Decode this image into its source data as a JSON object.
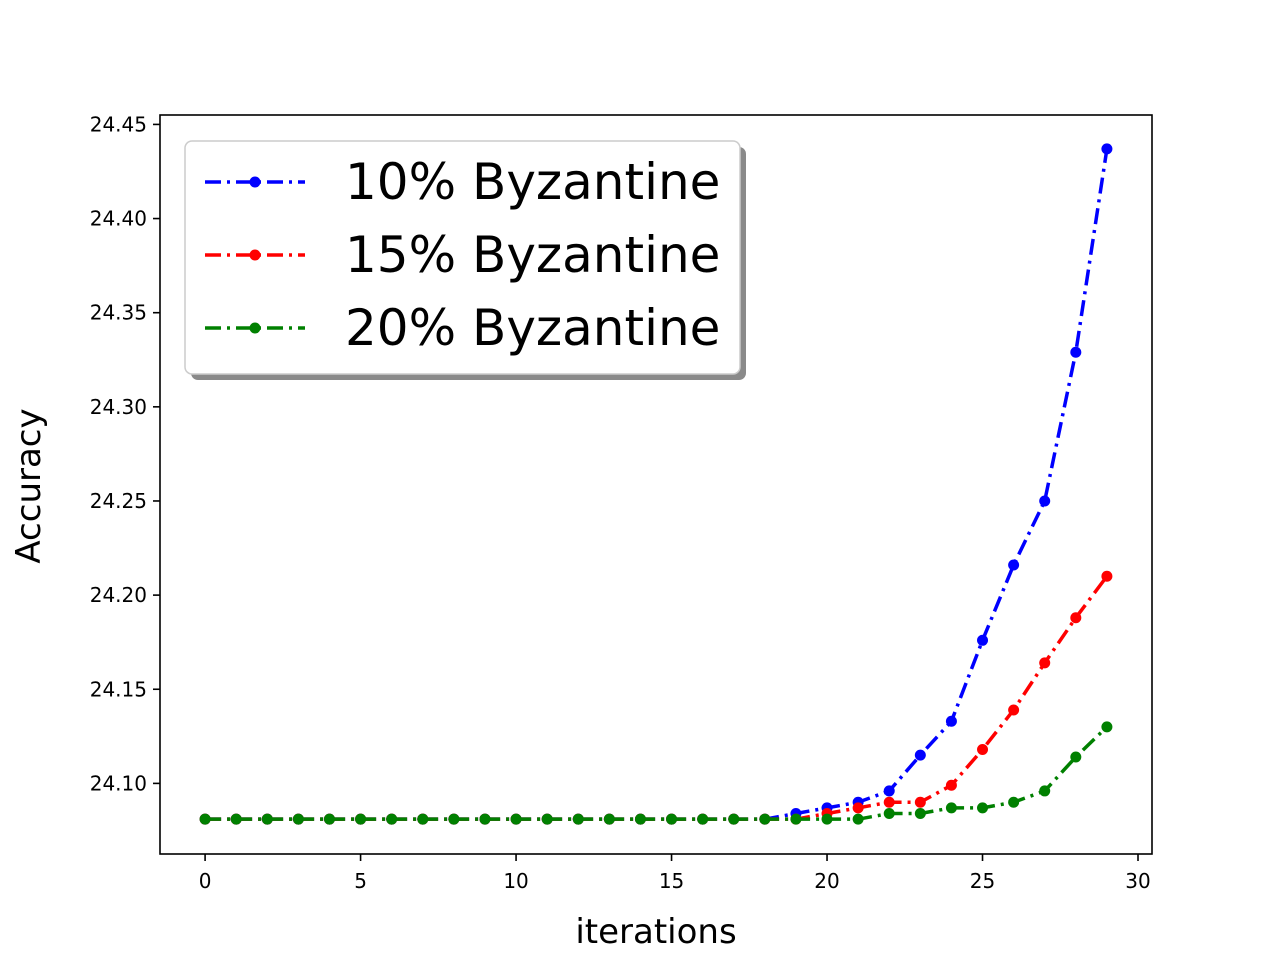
{
  "chart_data": {
    "type": "line",
    "title": "",
    "xlabel": "iterations",
    "ylabel": "Accuracy",
    "xlim": [
      -1.45,
      30.45
    ],
    "ylim": [
      24.0625,
      24.455
    ],
    "xticks": [
      0,
      5,
      10,
      15,
      20,
      25,
      30
    ],
    "yticks": [
      24.1,
      24.15,
      24.2,
      24.25,
      24.3,
      24.35,
      24.4,
      24.45
    ],
    "ytick_labels": [
      "24.10",
      "24.15",
      "24.20",
      "24.25",
      "24.30",
      "24.35",
      "24.40",
      "24.45"
    ],
    "grid": false,
    "legend_position": "upper-left",
    "x": [
      0,
      1,
      2,
      3,
      4,
      5,
      6,
      7,
      8,
      9,
      10,
      11,
      12,
      13,
      14,
      15,
      16,
      17,
      18,
      19,
      20,
      21,
      22,
      23,
      24,
      25,
      26,
      27,
      28,
      29
    ],
    "series": [
      {
        "name": "10% Byzantine",
        "color": "#0000ff",
        "values": [
          24.081,
          24.081,
          24.081,
          24.081,
          24.081,
          24.081,
          24.081,
          24.081,
          24.081,
          24.081,
          24.081,
          24.081,
          24.081,
          24.081,
          24.081,
          24.081,
          24.081,
          24.081,
          24.081,
          24.084,
          24.087,
          24.09,
          24.096,
          24.115,
          24.133,
          24.176,
          24.216,
          24.25,
          24.329,
          24.437
        ]
      },
      {
        "name": "15% Byzantine",
        "color": "#ff0000",
        "values": [
          24.081,
          24.081,
          24.081,
          24.081,
          24.081,
          24.081,
          24.081,
          24.081,
          24.081,
          24.081,
          24.081,
          24.081,
          24.081,
          24.081,
          24.081,
          24.081,
          24.081,
          24.081,
          24.081,
          24.081,
          24.084,
          24.087,
          24.09,
          24.09,
          24.099,
          24.118,
          24.139,
          24.164,
          24.188,
          24.21
        ]
      },
      {
        "name": "20% Byzantine",
        "color": "#008000",
        "values": [
          24.081,
          24.081,
          24.081,
          24.081,
          24.081,
          24.081,
          24.081,
          24.081,
          24.081,
          24.081,
          24.081,
          24.081,
          24.081,
          24.081,
          24.081,
          24.081,
          24.081,
          24.081,
          24.081,
          24.081,
          24.081,
          24.081,
          24.084,
          24.084,
          24.087,
          24.087,
          24.09,
          24.096,
          24.114,
          24.13
        ]
      }
    ]
  }
}
